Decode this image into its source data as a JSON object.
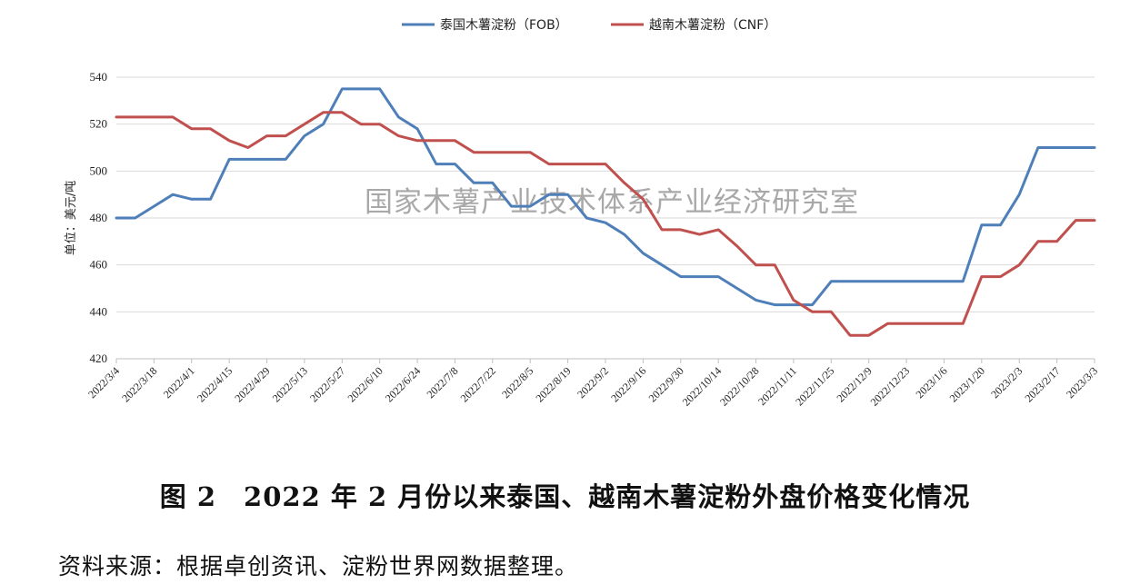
{
  "chart_data": {
    "type": "line",
    "title": "",
    "xlabel": "",
    "ylabel": "单位：美元/吨",
    "ylim": [
      420,
      540
    ],
    "yticks": [
      420,
      440,
      460,
      480,
      500,
      520,
      540
    ],
    "grid": true,
    "legend_position": "top-center",
    "x_tick_labels": [
      "2022/3/4",
      "2022/3/18",
      "2022/4/1",
      "2022/4/15",
      "2022/4/29",
      "2022/5/13",
      "2022/5/27",
      "2022/6/10",
      "2022/6/24",
      "2022/7/8",
      "2022/7/22",
      "2022/8/5",
      "2022/8/19",
      "2022/9/2",
      "2022/9/16",
      "2022/9/30",
      "2022/10/14",
      "2022/10/28",
      "2022/11/11",
      "2022/11/25",
      "2022/12/9",
      "2022/12/23",
      "2023/1/6",
      "2023/1/20",
      "2023/2/3",
      "2023/2/17",
      "2023/3/3"
    ],
    "x_count": 53,
    "series": [
      {
        "name": "泰国木薯淀粉（FOB）",
        "color": "#4F7FB8",
        "values": [
          480,
          480,
          485,
          490,
          488,
          488,
          505,
          505,
          505,
          505,
          515,
          520,
          535,
          535,
          535,
          523,
          518,
          503,
          503,
          495,
          495,
          485,
          485,
          490,
          490,
          480,
          478,
          473,
          465,
          460,
          455,
          455,
          455,
          450,
          445,
          443,
          443,
          443,
          453,
          453,
          453,
          453,
          453,
          453,
          453,
          453,
          477,
          477,
          490,
          510,
          510,
          510,
          510
        ]
      },
      {
        "name": "越南木薯淀粉（CNF）",
        "color": "#C0504D",
        "values": [
          523,
          523,
          523,
          523,
          518,
          518,
          513,
          510,
          515,
          515,
          520,
          525,
          525,
          520,
          520,
          515,
          513,
          513,
          513,
          508,
          508,
          508,
          508,
          503,
          503,
          503,
          503,
          495,
          488,
          475,
          475,
          473,
          475,
          468,
          460,
          460,
          445,
          440,
          440,
          430,
          430,
          435,
          435,
          435,
          435,
          435,
          455,
          455,
          460,
          470,
          470,
          479,
          479
        ]
      }
    ]
  },
  "watermark": "国家木薯产业技术体系产业经济研究室",
  "caption": "图 2　2022 年 2 月份以来泰国、越南木薯淀粉外盘价格变化情况",
  "source": "资料来源：根据卓创资讯、淀粉世界网数据整理。"
}
